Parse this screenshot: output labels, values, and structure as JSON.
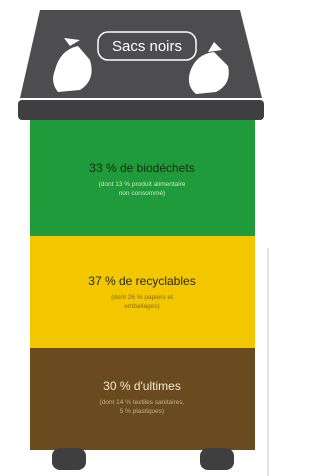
{
  "lid": {
    "label": "Sacs noirs"
  },
  "sections": [
    {
      "label": "33 % de biodéchets",
      "note": [
        "(dont 13 % produit alimentaire",
        "non consommé)"
      ]
    },
    {
      "label": "37 % de recyclables",
      "note": [
        "(dont 26 % papiers et",
        "emballages)"
      ]
    },
    {
      "label": "30 % d'ultimes",
      "note": [
        "(dont 14 % textiles sanitaires,",
        "5 % plastiques)"
      ]
    }
  ]
}
